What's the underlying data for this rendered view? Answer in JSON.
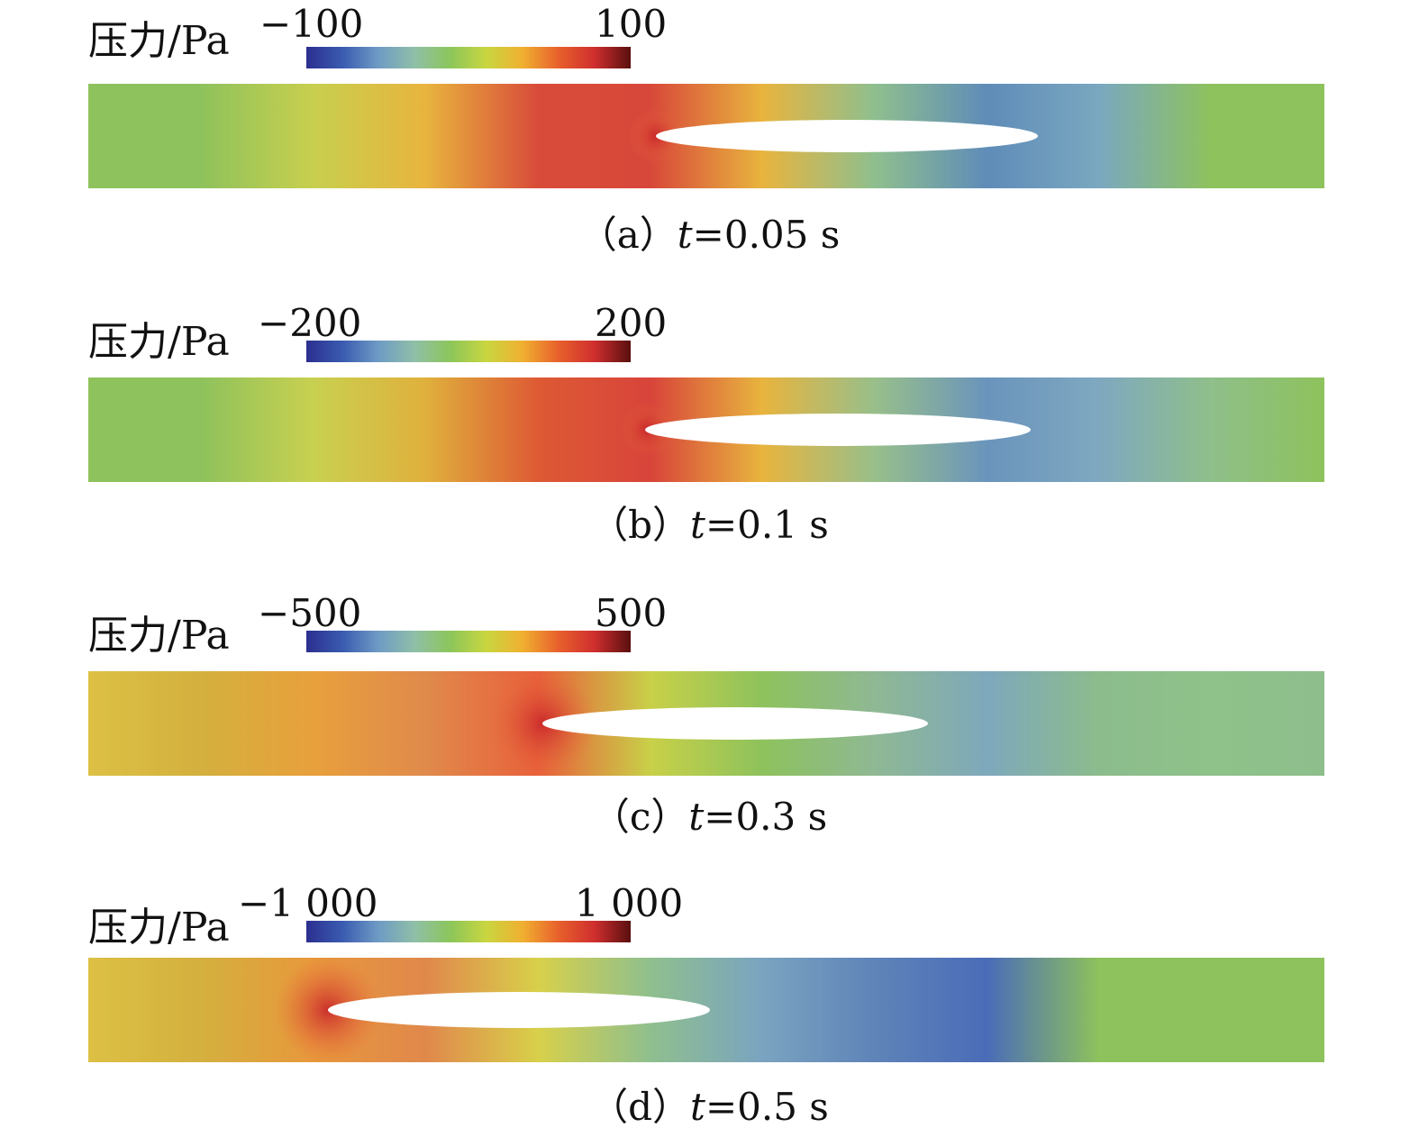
{
  "colorbar_stops": [
    "#2b2f8f",
    "#3a5bb0",
    "#6e9bc4",
    "#8fbfa8",
    "#8cc65a",
    "#c9d640",
    "#f0b030",
    "#e8602c",
    "#cf2e2e",
    "#5a0f0f"
  ],
  "panels": [
    {
      "id": "a",
      "label": "压力/Pa",
      "min_label": "−100",
      "max_label": "100",
      "caption_prefix": "（a）",
      "caption_var": "t",
      "caption_value": "=0.05 s",
      "field_colors": [
        "#8ec25c",
        "#8ec25c",
        "#c8cf4e",
        "#e8b43e",
        "#d84b3a",
        "#d8483a",
        "#e8b43e",
        "#8fbf8e",
        "#5f8cb8",
        "#7aa8c0",
        "#8ec25c",
        "#8ec25c"
      ]
    },
    {
      "id": "b",
      "label": "压力/Pa",
      "min_label": "−200",
      "max_label": "200",
      "caption_prefix": "（b）",
      "caption_var": "t",
      "caption_value": "=0.1 s",
      "field_colors": [
        "#8ec25c",
        "#8ec25c",
        "#c8d050",
        "#e0b03c",
        "#dd5a34",
        "#d8443a",
        "#e8b43e",
        "#98bf8a",
        "#6a94bc",
        "#7fa8c0",
        "#8fbf8a",
        "#8ec25c"
      ]
    },
    {
      "id": "c",
      "label": "压力/Pa",
      "min_label": "−500",
      "max_label": "500",
      "caption_prefix": "（c）",
      "caption_var": "t",
      "caption_value": "=0.3 s",
      "field_colors": [
        "#dcc044",
        "#d4b03e",
        "#e8a03c",
        "#e08a4c",
        "#e8603a",
        "#c8d048",
        "#8ec25c",
        "#8fb894",
        "#7ea8bc",
        "#8cbc8c",
        "#8ec28a",
        "#8ebe8c"
      ]
    },
    {
      "id": "d",
      "label": "压力/Pa",
      "min_label": "−1 000",
      "max_label": "1 000",
      "caption_prefix": "（d）",
      "caption_var": "t",
      "caption_value": "=0.5 s",
      "field_colors": [
        "#dcc044",
        "#d4b03e",
        "#e8983c",
        "#e0884c",
        "#d8d04a",
        "#8fbf8e",
        "#7aa4c0",
        "#5e84b8",
        "#4a6cb8",
        "#8ec25c",
        "#8ec25c",
        "#8ec25c"
      ]
    }
  ]
}
